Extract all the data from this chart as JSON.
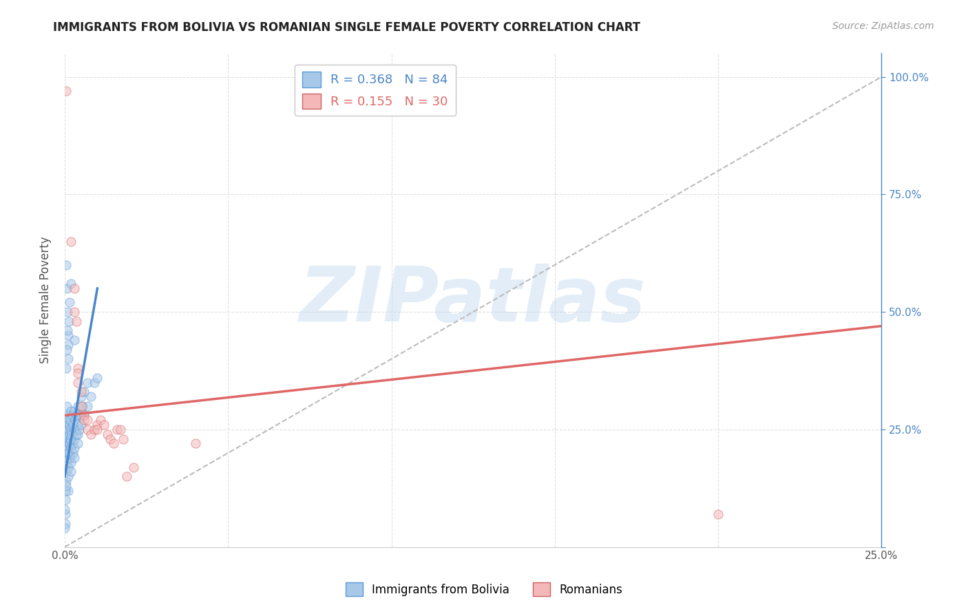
{
  "title": "IMMIGRANTS FROM BOLIVIA VS ROMANIAN SINGLE FEMALE POVERTY CORRELATION CHART",
  "source": "Source: ZipAtlas.com",
  "ylabel": "Single Female Poverty",
  "ytick_labels": [
    "",
    "25.0%",
    "50.0%",
    "75.0%",
    "100.0%"
  ],
  "ytick_positions": [
    0.0,
    0.25,
    0.5,
    0.75,
    1.0
  ],
  "legend_entries": [
    {
      "label": "R = 0.368   N = 84",
      "color": "#a8c8e8"
    },
    {
      "label": "R = 0.155   N = 30",
      "color": "#f4b8b8"
    }
  ],
  "legend2_entries": [
    {
      "label": "Immigrants from Bolivia",
      "color": "#a8c8e8"
    },
    {
      "label": "Romanians",
      "color": "#f4b8b8"
    }
  ],
  "bolivia_scatter": [
    [
      0.0002,
      0.22
    ],
    [
      0.0003,
      0.19
    ],
    [
      0.0004,
      0.16
    ],
    [
      0.0005,
      0.14
    ],
    [
      0.0005,
      0.22
    ],
    [
      0.0006,
      0.2
    ],
    [
      0.0006,
      0.25
    ],
    [
      0.0006,
      0.3
    ],
    [
      0.0007,
      0.18
    ],
    [
      0.0007,
      0.23
    ],
    [
      0.0008,
      0.21
    ],
    [
      0.0008,
      0.26
    ],
    [
      0.0009,
      0.19
    ],
    [
      0.0009,
      0.24
    ],
    [
      0.001,
      0.2
    ],
    [
      0.001,
      0.25
    ],
    [
      0.001,
      0.28
    ],
    [
      0.001,
      0.17
    ],
    [
      0.001,
      0.15
    ],
    [
      0.001,
      0.12
    ],
    [
      0.0012,
      0.22
    ],
    [
      0.0012,
      0.27
    ],
    [
      0.0013,
      0.2
    ],
    [
      0.0014,
      0.24
    ],
    [
      0.0015,
      0.22
    ],
    [
      0.0015,
      0.26
    ],
    [
      0.0016,
      0.19
    ],
    [
      0.0018,
      0.23
    ],
    [
      0.0018,
      0.27
    ],
    [
      0.002,
      0.21
    ],
    [
      0.002,
      0.25
    ],
    [
      0.002,
      0.29
    ],
    [
      0.002,
      0.18
    ],
    [
      0.002,
      0.16
    ],
    [
      0.0022,
      0.24
    ],
    [
      0.0023,
      0.28
    ],
    [
      0.0024,
      0.22
    ],
    [
      0.0025,
      0.26
    ],
    [
      0.0025,
      0.2
    ],
    [
      0.003,
      0.25
    ],
    [
      0.003,
      0.29
    ],
    [
      0.003,
      0.23
    ],
    [
      0.003,
      0.21
    ],
    [
      0.003,
      0.19
    ],
    [
      0.0032,
      0.27
    ],
    [
      0.0035,
      0.24
    ],
    [
      0.0035,
      0.28
    ],
    [
      0.004,
      0.26
    ],
    [
      0.004,
      0.3
    ],
    [
      0.004,
      0.24
    ],
    [
      0.004,
      0.22
    ],
    [
      0.0042,
      0.28
    ],
    [
      0.0045,
      0.25
    ],
    [
      0.005,
      0.28
    ],
    [
      0.005,
      0.32
    ],
    [
      0.005,
      0.26
    ],
    [
      0.0055,
      0.3
    ],
    [
      0.006,
      0.28
    ],
    [
      0.006,
      0.33
    ],
    [
      0.007,
      0.3
    ],
    [
      0.007,
      0.35
    ],
    [
      0.008,
      0.32
    ],
    [
      0.009,
      0.35
    ],
    [
      0.01,
      0.36
    ],
    [
      0.0004,
      0.6
    ],
    [
      0.0006,
      0.55
    ],
    [
      0.0008,
      0.5
    ],
    [
      0.001,
      0.45
    ],
    [
      0.0012,
      0.48
    ],
    [
      0.0015,
      0.52
    ],
    [
      0.002,
      0.56
    ],
    [
      0.003,
      0.44
    ],
    [
      0.001,
      0.4
    ],
    [
      0.001,
      0.43
    ],
    [
      0.0008,
      0.46
    ],
    [
      0.0006,
      0.42
    ],
    [
      0.0005,
      0.38
    ],
    [
      0.0003,
      0.05
    ],
    [
      0.0002,
      0.07
    ],
    [
      0.0001,
      0.04
    ],
    [
      0.0001,
      0.08
    ],
    [
      0.0002,
      0.1
    ],
    [
      0.0003,
      0.12
    ],
    [
      0.0004,
      0.13
    ]
  ],
  "romanian_scatter": [
    [
      0.0005,
      0.97
    ],
    [
      0.002,
      0.65
    ],
    [
      0.003,
      0.55
    ],
    [
      0.003,
      0.5
    ],
    [
      0.0035,
      0.48
    ],
    [
      0.004,
      0.38
    ],
    [
      0.004,
      0.37
    ],
    [
      0.004,
      0.35
    ],
    [
      0.005,
      0.33
    ],
    [
      0.005,
      0.3
    ],
    [
      0.006,
      0.28
    ],
    [
      0.006,
      0.27
    ],
    [
      0.007,
      0.27
    ],
    [
      0.007,
      0.25
    ],
    [
      0.008,
      0.24
    ],
    [
      0.009,
      0.25
    ],
    [
      0.01,
      0.26
    ],
    [
      0.01,
      0.25
    ],
    [
      0.011,
      0.27
    ],
    [
      0.012,
      0.26
    ],
    [
      0.013,
      0.24
    ],
    [
      0.014,
      0.23
    ],
    [
      0.015,
      0.22
    ],
    [
      0.016,
      0.25
    ],
    [
      0.017,
      0.25
    ],
    [
      0.018,
      0.23
    ],
    [
      0.019,
      0.15
    ],
    [
      0.021,
      0.17
    ],
    [
      0.2,
      0.07
    ],
    [
      0.04,
      0.22
    ]
  ],
  "bolivia_line": {
    "x": [
      0.0,
      0.01
    ],
    "y": [
      0.15,
      0.55
    ],
    "color": "#4a86c8"
  },
  "romanian_line": {
    "x": [
      0.0,
      0.25
    ],
    "y": [
      0.28,
      0.47
    ],
    "color": "#e06666"
  },
  "regression_dashed": {
    "x": [
      0.0,
      0.25
    ],
    "y": [
      0.0,
      1.0
    ],
    "color": "#bbbbbb"
  },
  "background_color": "#ffffff",
  "plot_bg_color": "#ffffff",
  "grid_color": "#dddddd",
  "title_color": "#222222",
  "source_color": "#999999",
  "axis_label_color": "#555555",
  "right_ytick_color": "#4a86c8",
  "scatter_alpha": 0.55,
  "scatter_size": 90,
  "watermark_text": "ZIPatlas",
  "watermark_color": "#c0d8f0",
  "watermark_alpha": 0.45,
  "xlim": [
    0.0,
    0.25
  ],
  "ylim": [
    0.0,
    1.05
  ],
  "xtick_positions": [
    0.0,
    0.05,
    0.1,
    0.15,
    0.2,
    0.25
  ],
  "xtick_labels": [
    "0.0%",
    "",
    "",
    "",
    "",
    "25.0%"
  ]
}
